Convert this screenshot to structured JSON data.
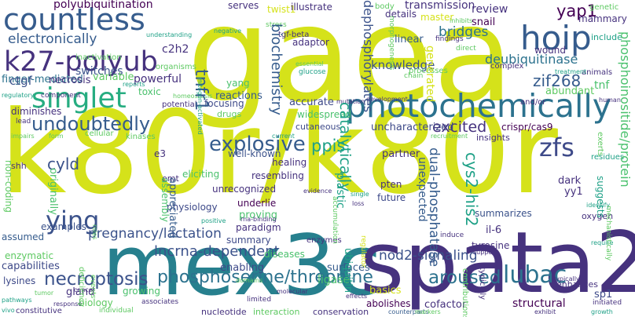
{
  "palette": {
    "lime": "#d5e21a",
    "yellowgreen": "#a0da39",
    "green": "#4ac16d",
    "teal": "#1fa187",
    "cyan": "#27808e",
    "slate": "#365c8d",
    "indigo": "#46327e",
    "purple": "#440154"
  },
  "words": [
    {
      "text": "gaea",
      "color": "#d5e21a"
    },
    {
      "text": "k80r/k80r",
      "color": "#d5e21a"
    },
    {
      "text": "mex3c",
      "color": "#27808e"
    },
    {
      "text": "spata2",
      "color": "#46327e"
    },
    {
      "text": "photochemically",
      "color": "#2c728e"
    },
    {
      "text": "countless",
      "color": "#365c8d"
    },
    {
      "text": "k27-polyub",
      "color": "#46327e"
    },
    {
      "text": "singlet",
      "color": "#27ad81"
    },
    {
      "text": "hoip",
      "color": "#365c8d"
    },
    {
      "text": "undoubtedly",
      "color": "#365c8d"
    },
    {
      "text": "explosive",
      "color": "#365c8d"
    },
    {
      "text": "ying",
      "color": "#3b528b"
    },
    {
      "text": "lubac",
      "color": "#2c728e"
    },
    {
      "text": "zfs",
      "color": "#3e4a89"
    },
    {
      "text": "phosphoserine/threonine",
      "color": "#2c728e"
    },
    {
      "text": "necroptosis",
      "color": "#3b528b"
    },
    {
      "text": "aroused",
      "color": "#2c728e"
    },
    {
      "text": "electronically",
      "color": "#365c8d"
    },
    {
      "text": "yap1",
      "color": "#440154"
    },
    {
      "text": "pregnancy/lactation",
      "color": "#3b528b"
    },
    {
      "text": "excited",
      "color": "#46327e"
    },
    {
      "text": "ppis",
      "color": "#1fa187"
    },
    {
      "text": "cyld",
      "color": "#3b528b"
    },
    {
      "text": "zif268",
      "color": "#365c8d"
    },
    {
      "text": "deubiquitinase",
      "color": "#2c728e"
    },
    {
      "text": "tnfr1",
      "color": "#365c8d"
    },
    {
      "text": "biochemistry",
      "color": "#365c8d"
    },
    {
      "text": "dephosphorylates",
      "color": "#3b528b"
    },
    {
      "text": "catalytically",
      "color": "#1fa187"
    },
    {
      "text": "cys2-his2",
      "color": "#1fa187"
    },
    {
      "text": "dual-phosphatase",
      "color": "#365c8d"
    },
    {
      "text": "lncrna-dependent",
      "color": "#3b528b"
    },
    {
      "text": "nod2-signaling",
      "color": "#3b528b"
    },
    {
      "text": "phosphoinositide/protein",
      "color": "#4ac16d"
    },
    {
      "text": "polyubiquitination",
      "color": "#440154"
    },
    {
      "text": "finger-mediated",
      "color": "#2c728e"
    },
    {
      "text": "switches",
      "color": "#3b528b"
    },
    {
      "text": "bridges",
      "color": "#2c728e"
    },
    {
      "text": "knowledge",
      "color": "#3b528b"
    },
    {
      "text": "transmission",
      "color": "#46327e"
    },
    {
      "text": "review",
      "color": "#46327e"
    },
    {
      "text": "snail",
      "color": "#440154"
    },
    {
      "text": "reactions",
      "color": "#365c8d"
    },
    {
      "text": "yang",
      "color": "#4ac16d"
    },
    {
      "text": "ctgf",
      "color": "#3b528b"
    },
    {
      "text": "necrosis",
      "color": "#46327e"
    },
    {
      "text": "variable",
      "color": "#5ec962"
    },
    {
      "text": "powerful",
      "color": "#46327e"
    },
    {
      "text": "toxic",
      "color": "#4ac16d"
    },
    {
      "text": "c2h2",
      "color": "#46327e"
    },
    {
      "text": "focusing",
      "color": "#3e4a89"
    },
    {
      "text": "drugs",
      "color": "#5ec962"
    },
    {
      "text": "accurate",
      "color": "#3e4a89"
    },
    {
      "text": "widespread",
      "color": "#4ac16d"
    },
    {
      "text": "uncharacterized",
      "color": "#3e4a89"
    },
    {
      "text": "cutaneous",
      "color": "#3e4a89"
    },
    {
      "text": "diminishes",
      "color": "#46327e"
    },
    {
      "text": "well-known",
      "color": "#3b528b"
    },
    {
      "text": "healing",
      "color": "#46327e"
    },
    {
      "text": "resembling",
      "color": "#46327e"
    },
    {
      "text": "unrecognized",
      "color": "#46327e"
    },
    {
      "text": "eliciting",
      "color": "#4ac16d"
    },
    {
      "text": "appreciated",
      "color": "#365c8d"
    },
    {
      "text": "assembly",
      "color": "#4ac16d"
    },
    {
      "text": "physiology",
      "color": "#3e4a89"
    },
    {
      "text": "emt",
      "color": "#46327e"
    },
    {
      "text": "underlie",
      "color": "#440154"
    },
    {
      "text": "proving",
      "color": "#4ac16d"
    },
    {
      "text": "plastic",
      "color": "#1fa187"
    },
    {
      "text": "partner",
      "color": "#46327e"
    },
    {
      "text": "pten",
      "color": "#46327e"
    },
    {
      "text": "future",
      "color": "#3e4a89"
    },
    {
      "text": "unexpected",
      "color": "#365c8d"
    },
    {
      "text": "dark",
      "color": "#46327e"
    },
    {
      "text": "yy1",
      "color": "#46327e"
    },
    {
      "text": "crispr/cas9",
      "color": "#440154"
    },
    {
      "text": "tnf",
      "color": "#4ac16d"
    },
    {
      "text": "abundant",
      "color": "#5ec962"
    },
    {
      "text": "examples",
      "color": "#3b528b"
    },
    {
      "text": "assumed",
      "color": "#365c8d"
    },
    {
      "text": "originally",
      "color": "#4ac16d"
    },
    {
      "text": "shh",
      "color": "#46327e"
    },
    {
      "text": "non-coding",
      "color": "#5ec962"
    },
    {
      "text": "summarizes",
      "color": "#3b528b"
    },
    {
      "text": "il-6",
      "color": "#46327e"
    },
    {
      "text": "paradigm",
      "color": "#46327e"
    },
    {
      "text": "summary",
      "color": "#3e4a89"
    },
    {
      "text": "capabilities",
      "color": "#3e4a89"
    },
    {
      "text": "enzymatic",
      "color": "#5ec962"
    },
    {
      "text": "lysines",
      "color": "#3e4a89"
    },
    {
      "text": "gland",
      "color": "#46327e"
    },
    {
      "text": "biology",
      "color": "#5ec962"
    },
    {
      "text": "growing",
      "color": "#4ac16d"
    },
    {
      "text": "enabling",
      "color": "#3e4a89"
    },
    {
      "text": "diseases",
      "color": "#4ac16d"
    },
    {
      "text": "surfaces",
      "color": "#365c8d"
    },
    {
      "text": "ligase",
      "color": "#4ac16d"
    },
    {
      "text": "basics",
      "color": "#d5e21a"
    },
    {
      "text": "ubiquitin",
      "color": "#1fa187"
    },
    {
      "text": "tyrosine",
      "color": "#46327e"
    },
    {
      "text": "abolishes",
      "color": "#440154"
    },
    {
      "text": "cofactor",
      "color": "#46327e"
    },
    {
      "text": "structural",
      "color": "#440154"
    },
    {
      "text": "sp1",
      "color": "#3e4a89"
    },
    {
      "text": "adaptor",
      "color": "#46327e"
    },
    {
      "text": "serves",
      "color": "#46327e"
    },
    {
      "text": "twist1",
      "color": "#d5e21a"
    },
    {
      "text": "illustrate",
      "color": "#46327e"
    },
    {
      "text": "details",
      "color": "#46327e"
    },
    {
      "text": "master",
      "color": "#d5e21a"
    },
    {
      "text": "linear",
      "color": "#365c8d"
    },
    {
      "text": "generated",
      "color": "#d5e21a"
    },
    {
      "text": "wound",
      "color": "#46327e"
    },
    {
      "text": "mammary",
      "color": "#46327e"
    },
    {
      "text": "body",
      "color": "#5ec962"
    },
    {
      "text": "genetic",
      "color": "#5ec962"
    },
    {
      "text": "exerts",
      "color": "#5ec962"
    },
    {
      "text": "include",
      "color": "#1fa187"
    },
    {
      "text": "animals",
      "color": "#46327e"
    },
    {
      "text": "tgf-beta",
      "color": "#46327e"
    },
    {
      "text": "stress",
      "color": "#5ec962"
    },
    {
      "text": "negative",
      "color": "#1fa187"
    },
    {
      "text": "organisms",
      "color": "#5ec962"
    },
    {
      "text": "inactivation",
      "color": "#5ec962"
    },
    {
      "text": "understanding",
      "color": "#1fa187"
    },
    {
      "text": "component",
      "color": "#46327e"
    },
    {
      "text": "reports",
      "color": "#1fa187"
    },
    {
      "text": "regulatory",
      "color": "#1fa187"
    },
    {
      "text": "lead",
      "color": "#46327e"
    },
    {
      "text": "form",
      "color": "#5ec962"
    },
    {
      "text": "cellular",
      "color": "#5ec962"
    },
    {
      "text": "kinases",
      "color": "#5ec962"
    },
    {
      "text": "e3",
      "color": "#46327e"
    },
    {
      "text": "potential",
      "color": "#46327e"
    },
    {
      "text": "homeostasis",
      "color": "#5ec962"
    },
    {
      "text": "impairs",
      "color": "#5ec962"
    },
    {
      "text": "mitogen-activated",
      "color": "#1fa187"
    },
    {
      "text": "essential",
      "color": "#5ec962"
    },
    {
      "text": "glucose",
      "color": "#1fa187"
    },
    {
      "text": "chain",
      "color": "#5ec962"
    },
    {
      "text": "processes",
      "color": "#5ec962"
    },
    {
      "text": "complex",
      "color": "#46327e"
    },
    {
      "text": "treatment",
      "color": "#1fa187"
    },
    {
      "text": "human",
      "color": "#46327e"
    },
    {
      "text": "and/or",
      "color": "#46327e"
    },
    {
      "text": "development",
      "color": "#46327e"
    },
    {
      "text": "mutation",
      "color": "#46327e"
    },
    {
      "text": "inhibits",
      "color": "#5ec962"
    },
    {
      "text": "direct",
      "color": "#5ec962"
    },
    {
      "text": "findings",
      "color": "#46327e"
    },
    {
      "text": "morphogenesis",
      "color": "#5ec962"
    },
    {
      "text": "current",
      "color": "#1fa187"
    },
    {
      "text": "evidence",
      "color": "#46327e"
    },
    {
      "text": "insights",
      "color": "#46327e"
    },
    {
      "text": "recruitment",
      "color": "#5ec962"
    },
    {
      "text": "mechanistically",
      "color": "#5ec962"
    },
    {
      "text": "residues",
      "color": "#1fa187"
    },
    {
      "text": "identify",
      "color": "#1fa187"
    },
    {
      "text": "oxygen",
      "color": "#46327e"
    },
    {
      "text": "require",
      "color": "#1fa187"
    },
    {
      "text": "single",
      "color": "#1fa187"
    },
    {
      "text": "loss",
      "color": "#46327e"
    },
    {
      "text": "accumulation",
      "color": "#5ec962"
    },
    {
      "text": "rna-binding",
      "color": "#46327e"
    },
    {
      "text": "enzymes",
      "color": "#46327e"
    },
    {
      "text": "positive",
      "color": "#1fa187"
    },
    {
      "text": "pathways",
      "color": "#1fa187"
    },
    {
      "text": "tumor",
      "color": "#5ec962"
    },
    {
      "text": "roles",
      "color": "#5ec962"
    },
    {
      "text": "cancer",
      "color": "#46327e"
    },
    {
      "text": "deficiency",
      "color": "#5ec962"
    },
    {
      "text": "events",
      "color": "#5ec962"
    },
    {
      "text": "associates",
      "color": "#46327e"
    },
    {
      "text": "individual",
      "color": "#5ec962"
    },
    {
      "text": "response",
      "color": "#46327e"
    },
    {
      "text": "vivo",
      "color": "#1fa187"
    },
    {
      "text": "constitutive",
      "color": "#46327e"
    },
    {
      "text": "nucleotide",
      "color": "#46327e"
    },
    {
      "text": "interaction",
      "color": "#5ec962"
    },
    {
      "text": "conservation",
      "color": "#46327e"
    },
    {
      "text": "effects",
      "color": "#46327e"
    },
    {
      "text": "molecular",
      "color": "#46327e"
    },
    {
      "text": "limited",
      "color": "#46327e"
    },
    {
      "text": "domains",
      "color": "#5ec962"
    },
    {
      "text": "regulator",
      "color": "#d5e21a"
    },
    {
      "text": "induce",
      "color": "#46327e"
    },
    {
      "text": "support",
      "color": "#46327e"
    },
    {
      "text": "contributions",
      "color": "#5ec962"
    },
    {
      "text": "typically",
      "color": "#46327e"
    },
    {
      "text": "enhances",
      "color": "#46327e"
    },
    {
      "text": "initiated",
      "color": "#46327e"
    },
    {
      "text": "exhibit",
      "color": "#46327e"
    },
    {
      "text": "growth",
      "color": "#1fa187"
    },
    {
      "text": "suggests",
      "color": "#1fa187"
    },
    {
      "text": "counterparts",
      "color": "#365c8d"
    },
    {
      "text": "markers",
      "color": "#5ec962"
    },
    {
      "text": "mechanisms",
      "color": "#5ec962"
    }
  ]
}
